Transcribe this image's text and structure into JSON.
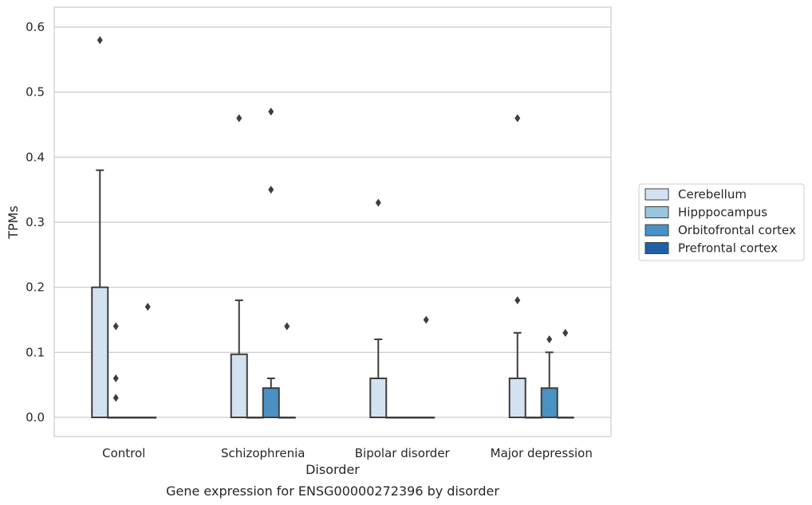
{
  "chart_data": {
    "type": "box",
    "title": "",
    "caption": "Gene expression for ENSG00000272396 by disorder",
    "xlabel": "Disorder",
    "ylabel": "TPMs",
    "ylim": [
      -0.03,
      0.61
    ],
    "yticks": [
      0.0,
      0.1,
      0.2,
      0.3,
      0.4,
      0.5,
      0.6
    ],
    "ytick_labels": [
      "0.0",
      "0.1",
      "0.2",
      "0.3",
      "0.4",
      "0.5",
      "0.6"
    ],
    "grid": "horizontal",
    "legend_position": "right",
    "categories": [
      "Control",
      "Schizophrenia",
      "Bipolar disorder",
      "Major depression"
    ],
    "series": [
      {
        "name": "Cerebellum",
        "color": "#d3e2f0",
        "boxes": [
          {
            "q1": 0.0,
            "median": 0.0,
            "q3": 0.2,
            "whisker_low": 0.0,
            "whisker_high": 0.38,
            "outliers": [
              0.58
            ]
          },
          {
            "q1": 0.0,
            "median": 0.0,
            "q3": 0.097,
            "whisker_low": 0.0,
            "whisker_high": 0.18,
            "outliers": [
              0.46
            ]
          },
          {
            "q1": 0.0,
            "median": 0.0,
            "q3": 0.06,
            "whisker_low": 0.0,
            "whisker_high": 0.12,
            "outliers": [
              0.33
            ]
          },
          {
            "q1": 0.0,
            "median": 0.0,
            "q3": 0.06,
            "whisker_low": 0.0,
            "whisker_high": 0.13,
            "outliers": [
              0.46,
              0.18
            ]
          }
        ]
      },
      {
        "name": "Hipppocampus",
        "color": "#9ac5df",
        "boxes": [
          {
            "q1": 0.0,
            "median": 0.0,
            "q3": 0.0,
            "whisker_low": 0.0,
            "whisker_high": 0.0,
            "outliers": [
              0.14,
              0.06,
              0.03
            ]
          },
          {
            "q1": 0.0,
            "median": 0.0,
            "q3": 0.0,
            "whisker_low": 0.0,
            "whisker_high": 0.0,
            "outliers": []
          },
          {
            "q1": 0.0,
            "median": 0.0,
            "q3": 0.0,
            "whisker_low": 0.0,
            "whisker_high": 0.0,
            "outliers": []
          },
          {
            "q1": 0.0,
            "median": 0.0,
            "q3": 0.0,
            "whisker_low": 0.0,
            "whisker_high": 0.0,
            "outliers": []
          }
        ]
      },
      {
        "name": "Orbitofrontal cortex",
        "color": "#4a91c4",
        "boxes": [
          {
            "q1": 0.0,
            "median": 0.0,
            "q3": 0.0,
            "whisker_low": 0.0,
            "whisker_high": 0.0,
            "outliers": []
          },
          {
            "q1": 0.0,
            "median": 0.0,
            "q3": 0.045,
            "whisker_low": 0.0,
            "whisker_high": 0.06,
            "outliers": [
              0.47,
              0.35
            ]
          },
          {
            "q1": 0.0,
            "median": 0.0,
            "q3": 0.0,
            "whisker_low": 0.0,
            "whisker_high": 0.0,
            "outliers": []
          },
          {
            "q1": 0.0,
            "median": 0.0,
            "q3": 0.045,
            "whisker_low": 0.0,
            "whisker_high": 0.1,
            "outliers": [
              0.12
            ]
          }
        ]
      },
      {
        "name": "Prefrontal cortex",
        "color": "#1f60a8",
        "boxes": [
          {
            "q1": 0.0,
            "median": 0.0,
            "q3": 0.0,
            "whisker_low": 0.0,
            "whisker_high": 0.0,
            "outliers": [
              0.17
            ]
          },
          {
            "q1": 0.0,
            "median": 0.0,
            "q3": 0.0,
            "whisker_low": 0.0,
            "whisker_high": 0.0,
            "outliers": [
              0.14
            ]
          },
          {
            "q1": 0.0,
            "median": 0.0,
            "q3": 0.0,
            "whisker_low": 0.0,
            "whisker_high": 0.0,
            "outliers": [
              0.15
            ]
          },
          {
            "q1": 0.0,
            "median": 0.0,
            "q3": 0.0,
            "whisker_low": 0.0,
            "whisker_high": 0.0,
            "outliers": [
              0.13
            ]
          }
        ]
      }
    ]
  }
}
